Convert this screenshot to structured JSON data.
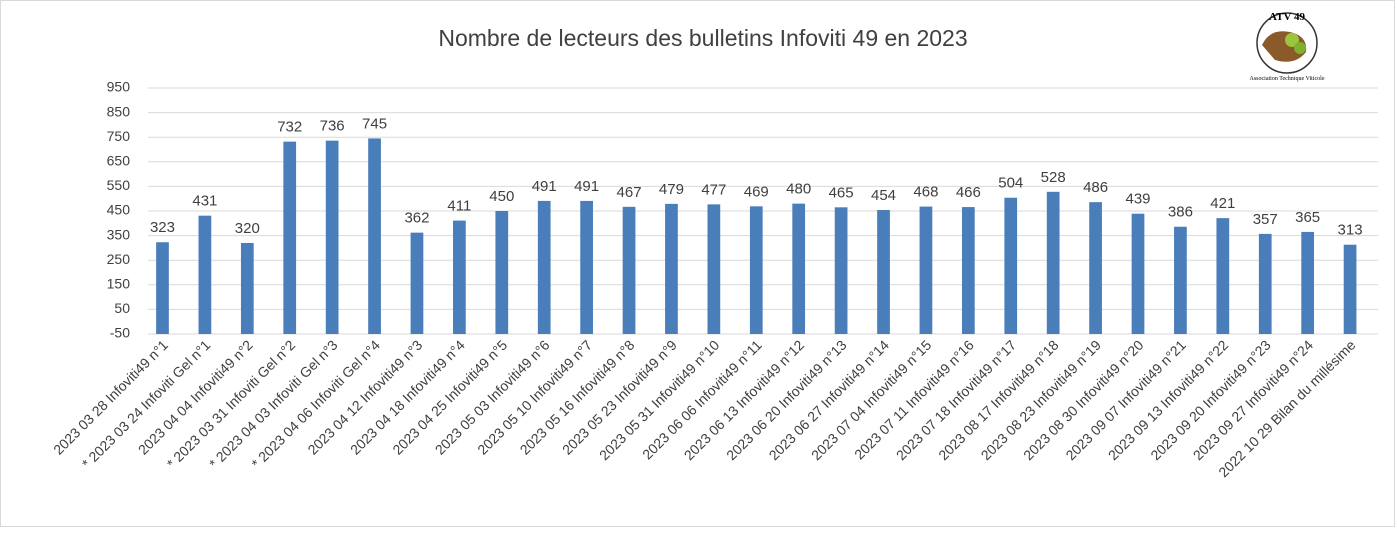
{
  "chart_data": {
    "type": "bar",
    "title": "Nombre de lecteurs des bulletins Infoviti 49 en 2023",
    "categories": [
      "2023 03 28 Infoviti49 n°1",
      "* 2023 03 24 Infoviti Gel n°1",
      "2023 04 04 Infoviti49 n°2",
      "* 2023 03 31 Infoviti Gel n°2",
      "* 2023 04 03 Infoviti Gel n°3",
      "* 2023 04 06 Infoviti Gel n°4",
      "2023 04 12 Infoviti49 n°3",
      "2023 04 18 Infoviti49 n°4",
      "2023 04 25 Infoviti49 n°5",
      "2023 05 03 Infoviti49 n°6",
      "2023 05 10 Infoviti49 n°7",
      "2023 05 16 Infoviti49 n°8",
      "2023 05 23 Infoviti49 n°9",
      "2023 05 31 Infoviti49 n°10",
      "2023 06 06 Infoviti49 n°11",
      "2023 06 13 Infoviti49 n°12",
      "2023 06 20 Infoviti49 n°13",
      "2023 06 27 Infoviti49 n°14",
      "2023 07 04 Infoviti49 n°15",
      "2023 07 11 Infoviti49 n°16",
      "2023 07 18 Infoviti49 n°17",
      "2023 08 17 Infoviti49 n°18",
      "2023 08 23 Infoviti49 n°19",
      "2023 08 30 Infoviti49 n°20",
      "2023 09 07 Infoviti49 n°21",
      "2023 09 13 Infoviti49 n°22",
      "2023 09 20 Infoviti49 n°23",
      "2023 09 27 Infoviti49 n°24",
      "2022 10 29 Bilan du millésime"
    ],
    "values": [
      323,
      431,
      320,
      732,
      736,
      745,
      362,
      411,
      450,
      491,
      491,
      467,
      479,
      477,
      469,
      480,
      465,
      454,
      468,
      466,
      504,
      528,
      486,
      439,
      386,
      421,
      357,
      365,
      313
    ],
    "color": "#4a7ebb",
    "ylim": [
      -50,
      950
    ],
    "yticks": [
      -50,
      50,
      150,
      250,
      350,
      450,
      550,
      650,
      750,
      850,
      950
    ],
    "grid": true
  },
  "logo": {
    "title": "ATV 49",
    "subtitle": "Association Technique Viticole"
  }
}
